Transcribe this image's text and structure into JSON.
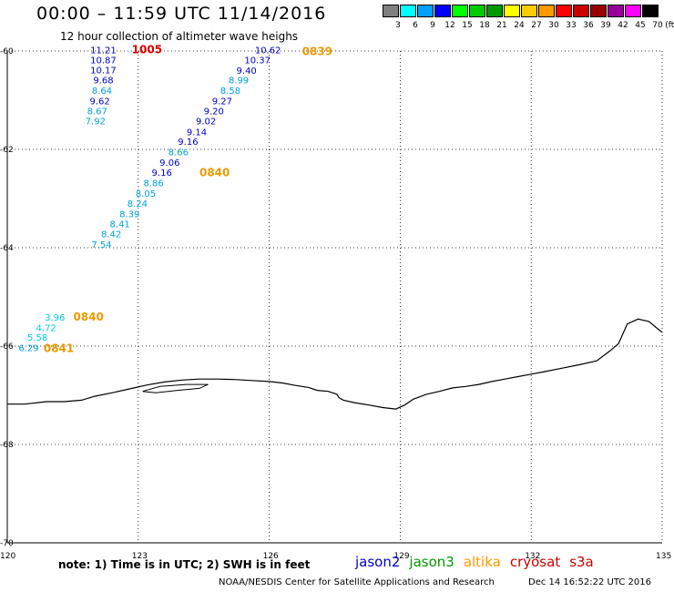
{
  "header": {
    "title": "00:00 – 11:59 UTC 11/14/2016",
    "subtitle": "12 hour collection of altimeter wave heighs"
  },
  "legend": {
    "unit": "(ft)",
    "items": [
      {
        "label": "3",
        "color": "#808080"
      },
      {
        "label": "6",
        "color": "#00ffff"
      },
      {
        "label": "9",
        "color": "#00a0ff"
      },
      {
        "label": "12",
        "color": "#0000ff"
      },
      {
        "label": "15",
        "color": "#00ff00"
      },
      {
        "label": "18",
        "color": "#00cc00"
      },
      {
        "label": "21",
        "color": "#009900"
      },
      {
        "label": "24",
        "color": "#ffff00"
      },
      {
        "label": "27",
        "color": "#ffcc00"
      },
      {
        "label": "30",
        "color": "#ff9900"
      },
      {
        "label": "33",
        "color": "#ff0000"
      },
      {
        "label": "36",
        "color": "#cc0000"
      },
      {
        "label": "39",
        "color": "#990000"
      },
      {
        "label": "42",
        "color": "#990099"
      },
      {
        "label": "45",
        "color": "#ff00ff"
      },
      {
        "label": "70",
        "color": "#000000"
      }
    ]
  },
  "axes": {
    "lat_labels": [
      "-60",
      "-62",
      "-64",
      "-66",
      "-68",
      "-70"
    ],
    "lon_labels": [
      "120",
      "123",
      "126",
      "129",
      "132",
      "135"
    ]
  },
  "observations": [
    {
      "v": "11.21",
      "lon": 122.2,
      "lat": -60.05,
      "color": "#0000cc"
    },
    {
      "v": "10.87",
      "lon": 122.2,
      "lat": -60.25,
      "color": "#0000cc"
    },
    {
      "v": "10.17",
      "lon": 122.2,
      "lat": -60.45,
      "color": "#0000cc"
    },
    {
      "v": "9.68",
      "lon": 122.2,
      "lat": -60.66,
      "color": "#0000cc"
    },
    {
      "v": "8.64",
      "lon": 122.17,
      "lat": -60.87,
      "color": "#00a0e0"
    },
    {
      "v": "9.62",
      "lon": 122.12,
      "lat": -61.08,
      "color": "#0000cc"
    },
    {
      "v": "8.67",
      "lon": 122.06,
      "lat": -61.29,
      "color": "#00a0e0"
    },
    {
      "v": "7.92",
      "lon": 122.02,
      "lat": -61.49,
      "color": "#00a0e0"
    },
    {
      "v": "10.62",
      "lon": 125.97,
      "lat": -60.05,
      "color": "#0000cc"
    },
    {
      "v": "10.37",
      "lon": 125.73,
      "lat": -60.25,
      "color": "#0000cc"
    },
    {
      "v": "9.40",
      "lon": 125.48,
      "lat": -60.46,
      "color": "#0000cc"
    },
    {
      "v": "8.99",
      "lon": 125.3,
      "lat": -60.66,
      "color": "#00a0e0"
    },
    {
      "v": "8.58",
      "lon": 125.11,
      "lat": -60.87,
      "color": "#00a0e0"
    },
    {
      "v": "9.27",
      "lon": 124.92,
      "lat": -61.08,
      "color": "#0000cc"
    },
    {
      "v": "9.20",
      "lon": 124.73,
      "lat": -61.29,
      "color": "#0000cc"
    },
    {
      "v": "9.02",
      "lon": 124.55,
      "lat": -61.49,
      "color": "#0000cc"
    },
    {
      "v": "9.14",
      "lon": 124.34,
      "lat": -61.71,
      "color": "#0000cc"
    },
    {
      "v": "9.16",
      "lon": 124.14,
      "lat": -61.91,
      "color": "#0000cc"
    },
    {
      "v": "8.66",
      "lon": 123.92,
      "lat": -62.12,
      "color": "#00a0e0"
    },
    {
      "v": "9.06",
      "lon": 123.72,
      "lat": -62.33,
      "color": "#0000cc"
    },
    {
      "v": "9.16",
      "lon": 123.54,
      "lat": -62.54,
      "color": "#0000cc"
    },
    {
      "v": "8.86",
      "lon": 123.35,
      "lat": -62.75,
      "color": "#00a0e0"
    },
    {
      "v": "8.05",
      "lon": 123.17,
      "lat": -62.96,
      "color": "#00a0e0"
    },
    {
      "v": "8.24",
      "lon": 122.98,
      "lat": -63.17,
      "color": "#00a0e0"
    },
    {
      "v": "8.39",
      "lon": 122.8,
      "lat": -63.38,
      "color": "#00a0e0"
    },
    {
      "v": "8.41",
      "lon": 122.58,
      "lat": -63.58,
      "color": "#00a0e0"
    },
    {
      "v": "8.42",
      "lon": 122.38,
      "lat": -63.79,
      "color": "#00a0e0"
    },
    {
      "v": "7.54",
      "lon": 122.16,
      "lat": -64.0,
      "color": "#00a0e0"
    },
    {
      "v": "3.96",
      "lon": 121.09,
      "lat": -65.48,
      "color": "#00c8e8"
    },
    {
      "v": "4.72",
      "lon": 120.89,
      "lat": -65.69,
      "color": "#00c8e8"
    },
    {
      "v": "5.58",
      "lon": 120.69,
      "lat": -65.89,
      "color": "#00c8e8"
    },
    {
      "v": "6.29",
      "lon": 120.49,
      "lat": -66.1,
      "color": "#00a0e0"
    }
  ],
  "time_labels": [
    {
      "text": "1005",
      "lon": 123.2,
      "lat": -60.05,
      "color": "#dd0000"
    },
    {
      "text": "0839",
      "lon": 127.1,
      "lat": -60.08,
      "color": "#ee9900"
    },
    {
      "text": "0840",
      "lon": 124.75,
      "lat": -62.55,
      "color": "#ee9900"
    },
    {
      "text": "0840",
      "lon": 121.86,
      "lat": -65.48,
      "color": "#ee9900"
    },
    {
      "text": "0841",
      "lon": 121.18,
      "lat": -66.12,
      "color": "#ee9900"
    }
  ],
  "note": "note:  1) Time is in UTC;  2) SWH is in feet",
  "satellites": [
    {
      "name": "jason2",
      "color": "#0000cc"
    },
    {
      "name": "jason3",
      "color": "#009900"
    },
    {
      "name": "altika",
      "color": "#ff9900"
    },
    {
      "name": "cryosat",
      "color": "#cc0000"
    },
    {
      "name": "s3a",
      "color": "#cc0000"
    }
  ],
  "credit": "NOAA/NESDIS Center for Satellite Applications and Research",
  "timestamp": "Dec 14 16:52:22 UTC 2016"
}
